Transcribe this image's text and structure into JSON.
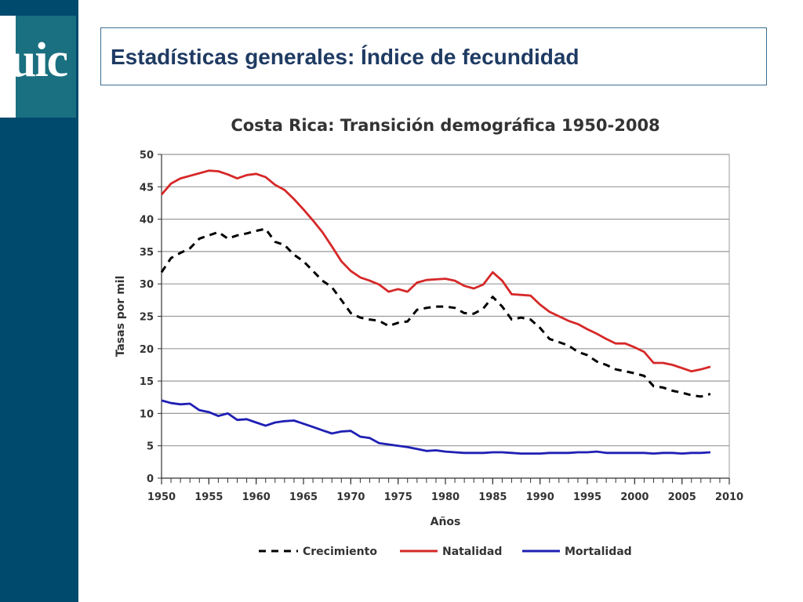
{
  "slide": {
    "title": "Estadísticas generales: Índice de fecundidad",
    "logo_text": "uic"
  },
  "colors": {
    "sidebar": "#004a6d",
    "logo_tile": "#1a6f80",
    "title_text": "#1f3b63",
    "crecimiento": "#000000",
    "natalidad": "#d62828",
    "mortalidad": "#1f1fb4"
  },
  "chart_data": {
    "type": "line",
    "title": "Costa Rica: Transición demográfica 1950-2008",
    "xlabel": "Años",
    "ylabel": "Tasas por mil",
    "xlim": [
      1950,
      2010
    ],
    "ylim": [
      0,
      50
    ],
    "xticks": [
      1950,
      1955,
      1960,
      1965,
      1970,
      1975,
      1980,
      1985,
      1990,
      1995,
      2000,
      2005,
      2010
    ],
    "yticks": [
      0,
      5,
      10,
      15,
      20,
      25,
      30,
      35,
      40,
      45,
      50
    ],
    "grid": "horizontal",
    "legend_position": "bottom",
    "x": [
      1950,
      1951,
      1952,
      1953,
      1954,
      1955,
      1956,
      1957,
      1958,
      1959,
      1960,
      1961,
      1962,
      1963,
      1964,
      1965,
      1966,
      1967,
      1968,
      1969,
      1970,
      1971,
      1972,
      1973,
      1974,
      1975,
      1976,
      1977,
      1978,
      1979,
      1980,
      1981,
      1982,
      1983,
      1984,
      1985,
      1986,
      1987,
      1988,
      1989,
      1990,
      1991,
      1992,
      1993,
      1994,
      1995,
      1996,
      1997,
      1998,
      1999,
      2000,
      2001,
      2002,
      2003,
      2004,
      2005,
      2006,
      2007,
      2008
    ],
    "series": [
      {
        "name": "Crecimiento",
        "style": "dashed",
        "values": [
          31.8,
          34.0,
          34.8,
          35.5,
          37.0,
          37.5,
          38.0,
          37.0,
          37.5,
          37.8,
          38.2,
          38.5,
          36.5,
          36.0,
          34.5,
          33.5,
          32.0,
          30.5,
          29.5,
          27.5,
          25.5,
          24.8,
          24.5,
          24.3,
          23.5,
          24.0,
          24.2,
          26.0,
          26.3,
          26.5,
          26.5,
          26.3,
          25.5,
          25.4,
          26.2,
          28.0,
          26.5,
          24.5,
          24.8,
          24.5,
          23.2,
          21.5,
          21.0,
          20.5,
          19.5,
          19.0,
          18.0,
          17.5,
          16.8,
          16.5,
          16.2,
          15.8,
          14.2,
          14.0,
          13.5,
          13.2,
          12.8,
          12.6,
          13.0
        ]
      },
      {
        "name": "Natalidad",
        "style": "solid",
        "values": [
          43.8,
          45.5,
          46.3,
          46.7,
          47.1,
          47.5,
          47.4,
          46.9,
          46.3,
          46.8,
          47.0,
          46.5,
          45.3,
          44.5,
          43.1,
          41.5,
          39.8,
          38.0,
          35.8,
          33.5,
          32.0,
          31.0,
          30.5,
          29.9,
          28.8,
          29.2,
          28.8,
          30.2,
          30.6,
          30.7,
          30.8,
          30.5,
          29.7,
          29.3,
          29.9,
          31.8,
          30.5,
          28.4,
          28.3,
          28.2,
          26.8,
          25.7,
          25.0,
          24.3,
          23.8,
          23.0,
          22.3,
          21.5,
          20.8,
          20.8,
          20.2,
          19.5,
          17.8,
          17.8,
          17.5,
          17.0,
          16.5,
          16.8,
          17.2
        ]
      },
      {
        "name": "Mortalidad",
        "style": "solid",
        "values": [
          12.0,
          11.6,
          11.4,
          11.5,
          10.5,
          10.2,
          9.6,
          10.0,
          9.0,
          9.1,
          8.6,
          8.1,
          8.6,
          8.8,
          8.9,
          8.4,
          7.9,
          7.4,
          6.9,
          7.2,
          7.3,
          6.4,
          6.2,
          5.4,
          5.2,
          5.0,
          4.8,
          4.5,
          4.2,
          4.3,
          4.1,
          4.0,
          3.9,
          3.9,
          3.9,
          4.0,
          4.0,
          3.9,
          3.8,
          3.8,
          3.8,
          3.9,
          3.9,
          3.9,
          4.0,
          4.0,
          4.1,
          3.9,
          3.9,
          3.9,
          3.9,
          3.9,
          3.8,
          3.9,
          3.9,
          3.8,
          3.9,
          3.9,
          4.0
        ]
      }
    ]
  }
}
